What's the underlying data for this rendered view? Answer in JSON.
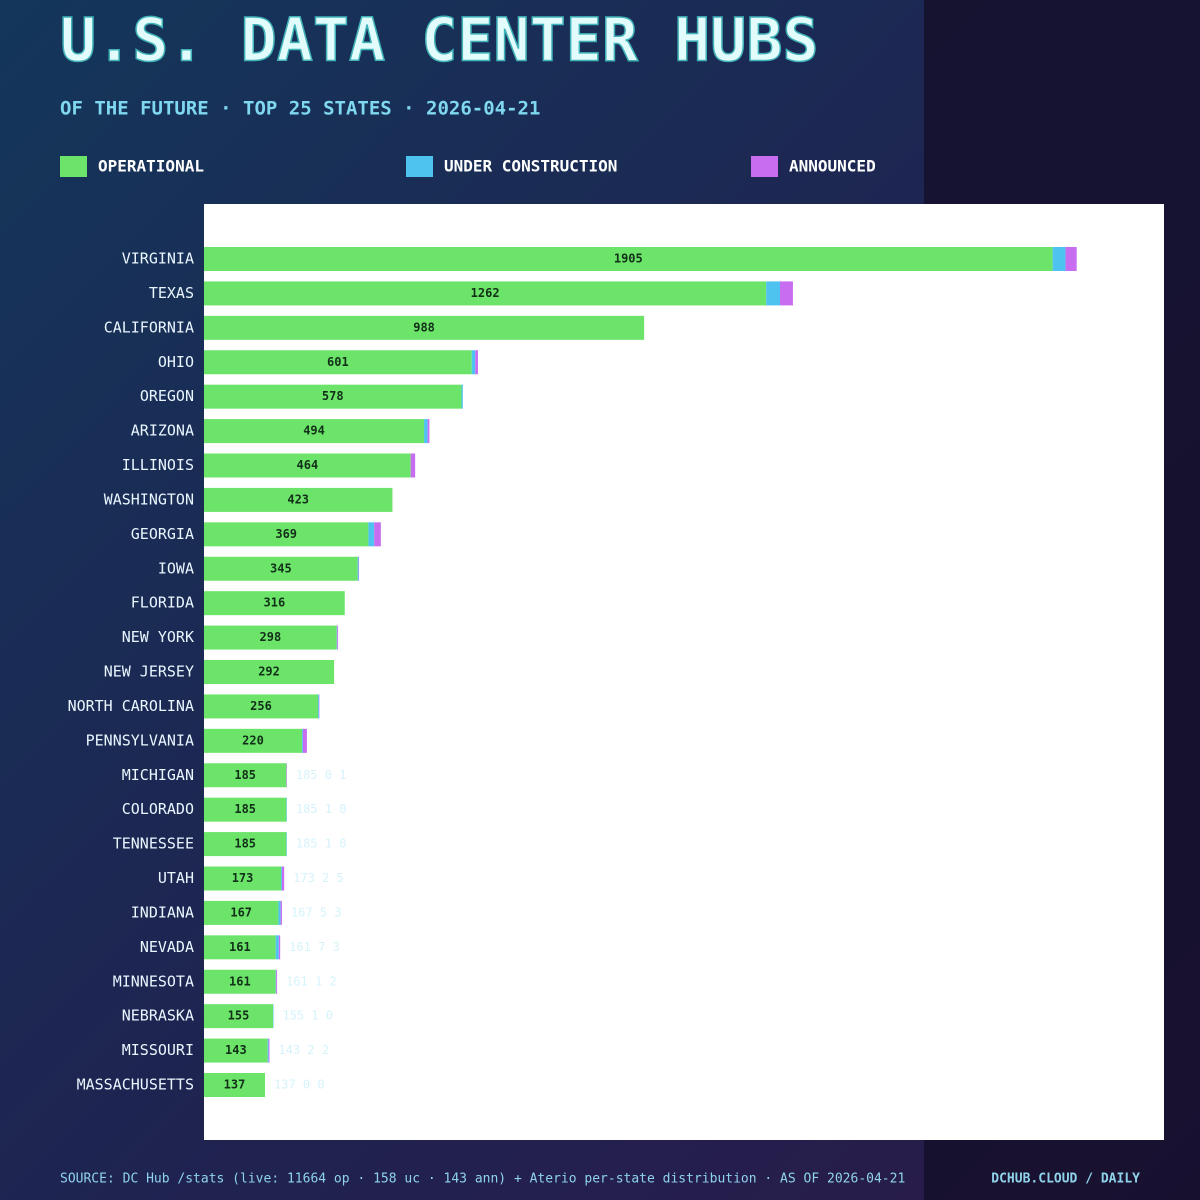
{
  "chart_data": {
    "type": "bar",
    "orientation": "horizontal",
    "stacked": true,
    "title": "U.S. DATA CENTER HUBS",
    "subtitle": "OF THE FUTURE · TOP 25 STATES · 2026-04-21",
    "categories": [
      "VIRGINIA",
      "TEXAS",
      "CALIFORNIA",
      "OHIO",
      "OREGON",
      "ARIZONA",
      "ILLINOIS",
      "WASHINGTON",
      "GEORGIA",
      "IOWA",
      "FLORIDA",
      "NEW YORK",
      "NEW JERSEY",
      "NORTH CAROLINA",
      "PENNSYLVANIA",
      "MICHIGAN",
      "COLORADO",
      "TENNESSEE",
      "UTAH",
      "INDIANA",
      "NEVADA",
      "MINNESOTA",
      "NEBRASKA",
      "MISSOURI",
      "MASSACHUSETTS"
    ],
    "series": [
      {
        "name": "OPERATIONAL",
        "color": "#6ce46a",
        "values": [
          1905,
          1262,
          988,
          601,
          578,
          494,
          464,
          423,
          369,
          345,
          316,
          298,
          292,
          256,
          220,
          185,
          185,
          185,
          173,
          167,
          161,
          161,
          155,
          143,
          137
        ]
      },
      {
        "name": "UNDER CONSTRUCTION",
        "color": "#4fc3f0",
        "values": [
          29,
          31,
          0,
          8,
          3,
          8,
          0,
          0,
          13,
          2,
          0,
          1,
          0,
          2,
          2,
          0,
          1,
          1,
          2,
          5,
          7,
          1,
          1,
          2,
          0
        ]
      },
      {
        "name": "ANNOUNCED",
        "color": "#c86cf0",
        "values": [
          25,
          29,
          0,
          6,
          0,
          4,
          10,
          0,
          15,
          1,
          0,
          2,
          0,
          1,
          9,
          1,
          0,
          0,
          5,
          3,
          3,
          2,
          0,
          2,
          0
        ]
      }
    ],
    "detail_labels": [
      null,
      null,
      null,
      null,
      null,
      null,
      null,
      null,
      null,
      null,
      null,
      null,
      null,
      null,
      null,
      "185 0 1",
      "185 1 0",
      "185 1 0",
      "173 2 5",
      "167 5 3",
      "161 7 3",
      "161 1 2",
      "155 1 0",
      "143 2 2",
      "137 0 0"
    ],
    "xlim": [
      0,
      2155
    ],
    "source": "SOURCE: DC Hub /stats (live: 11664 op · 158 uc · 143 ann) + Aterio per-state distribution · AS OF 2026-04-21",
    "brand": "DCHUB.CLOUD / DAILY"
  }
}
